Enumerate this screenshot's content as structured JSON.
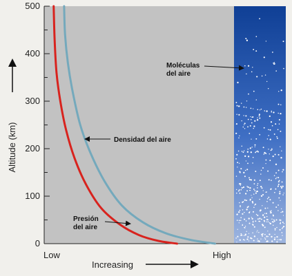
{
  "chart_data": {
    "type": "line",
    "ylabel": "Altitude (km)",
    "x_axis": {
      "low_label": "Low",
      "center_label": "Increasing",
      "high_label": "High"
    },
    "y_ticks": [
      0,
      100,
      200,
      300,
      400,
      500
    ],
    "ylim": [
      0,
      500
    ],
    "xlim": [
      0,
      1
    ],
    "series": [
      {
        "name": "Presión del aire",
        "color": "#d8231e",
        "points": [
          [
            0.05,
            500
          ],
          [
            0.055,
            430
          ],
          [
            0.065,
            360
          ],
          [
            0.085,
            300
          ],
          [
            0.115,
            240
          ],
          [
            0.16,
            180
          ],
          [
            0.22,
            125
          ],
          [
            0.3,
            75
          ],
          [
            0.4,
            40
          ],
          [
            0.5,
            18
          ],
          [
            0.6,
            6
          ],
          [
            0.7,
            0
          ]
        ]
      },
      {
        "name": "Densidad del aire",
        "color": "#74a9bc",
        "points": [
          [
            0.105,
            500
          ],
          [
            0.11,
            440
          ],
          [
            0.125,
            380
          ],
          [
            0.15,
            320
          ],
          [
            0.19,
            250
          ],
          [
            0.245,
            190
          ],
          [
            0.32,
            130
          ],
          [
            0.41,
            80
          ],
          [
            0.52,
            45
          ],
          [
            0.64,
            22
          ],
          [
            0.77,
            8
          ],
          [
            0.9,
            0
          ]
        ]
      }
    ],
    "annotations": [
      {
        "label": [
          "Densidad del aire"
        ],
        "target": "Densidad del aire"
      },
      {
        "label": [
          "Presión",
          "del aire"
        ],
        "target": "Presión del aire"
      },
      {
        "label": [
          "Moléculas",
          "del aire"
        ],
        "target": "molecule-column"
      }
    ],
    "colors": {
      "plot_background": "#c2c2c2",
      "column_top": "#0f3f95",
      "column_bottom": "#9fb6e0"
    }
  }
}
